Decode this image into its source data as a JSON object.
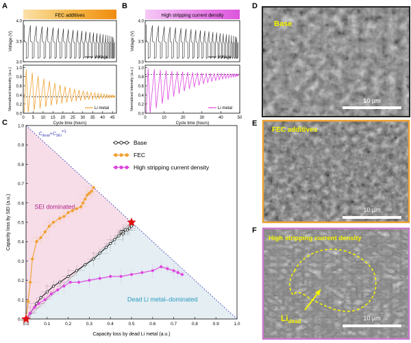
{
  "panel_letters": {
    "a": "A",
    "b": "B",
    "c": "C",
    "d": "D",
    "e": "E",
    "f": "F"
  },
  "colors": {
    "orange": "#f0a030",
    "magenta": "#dd44dd",
    "black": "#111111",
    "fec_banner": "#f5a623",
    "hscd_banner": "#e478e8",
    "sei_region": "#f6dde8",
    "deadli_region": "#e4eef3",
    "diag": "#3a3ab8",
    "star": "#e01010",
    "sem_base_border": "#222222",
    "sem_fec_border": "#f0a030",
    "sem_hscd_border": "#cc77cc"
  },
  "panelA": {
    "banner": "FEC additives",
    "voltage_ylabel": "Voltage (V)",
    "voltage_ticks": [
      "3.5",
      "4.0",
      "3.0"
    ],
    "intensity_ylabel": "Normalized intensity (a.u.)",
    "intensity_ticks": [
      "1.0",
      "0.8",
      "0.6",
      "0.4",
      "0.2",
      "0.0"
    ],
    "x_ticks": [
      "0",
      "5",
      "10",
      "15",
      "20",
      "25",
      "30",
      "35",
      "40",
      "45"
    ],
    "xlabel": "Cycle time (hours)",
    "legend_voltage": "Voltage",
    "legend_li": "Li metal",
    "dashed_level": 0.36
  },
  "panelB": {
    "banner": "High stripping current density",
    "voltage_ylabel": "Voltage (V)",
    "voltage_ticks": [
      "3.5",
      "4.0",
      "3.0"
    ],
    "intensity_ylabel": "Normalized intensity (a.u.)",
    "intensity_ticks": [
      "1.0",
      "0.8",
      "0.6",
      "0.4",
      "0.2",
      "0.0"
    ],
    "x_ticks": [
      "0",
      "10",
      "20",
      "30",
      "40",
      "50"
    ],
    "xlabel": "Cycle time (hours)",
    "legend_voltage": "Voltage",
    "legend_li": "Li metal",
    "dashed_level": 0.85
  },
  "chart_data": [
    {
      "type": "line",
      "title": "FEC additives",
      "xlabel": "Cycle time (hours)",
      "ylabel": "Normalized intensity (a.u.)",
      "xlim": [
        0,
        47
      ],
      "ylim": [
        0,
        1.05
      ],
      "cycles": 23,
      "cycle_period_h": 2.0,
      "peak_start": 0.96,
      "trough_start": 0.02,
      "converge_to": 0.36,
      "voltage_ylim": [
        3.0,
        4.0
      ],
      "voltage_high": 3.5,
      "voltage_low": 3.0
    },
    {
      "type": "line",
      "title": "High stripping current density",
      "xlabel": "Cycle time (hours)",
      "ylabel": "Normalized intensity (a.u.)",
      "xlim": [
        0,
        50
      ],
      "ylim": [
        0,
        1.05
      ],
      "cycles": 23,
      "cycle_period_h": 2.1,
      "peak_start": 0.98,
      "trough_start": 0.0,
      "converge_to": 0.85,
      "voltage_ylim": [
        3.0,
        4.0
      ],
      "voltage_high": 3.5,
      "voltage_low": 3.0
    },
    {
      "type": "line",
      "title": "",
      "xlabel": "Capacity loss by dead Li metal (a.u.)",
      "ylabel": "Capacity loss by SEI (a.u.)",
      "xlim": [
        0,
        1.0
      ],
      "ylim": [
        0,
        1.0
      ],
      "x_ticks": [
        "0.0",
        "0.1",
        "0.2",
        "0.3",
        "0.4",
        "0.5",
        "0.6",
        "0.7",
        "0.8",
        "0.9",
        "1.0"
      ],
      "y_ticks": [
        "0.0",
        "0.1",
        "0.2",
        "0.3",
        "0.4",
        "0.5",
        "0.6",
        "0.7",
        "0.8",
        "0.9",
        "1.0"
      ],
      "diagonal_label_c": "C",
      "diagonal_label_dead": "dead",
      "diagonal_label_plus": "+",
      "diagonal_label_sei": "SEI",
      "diagonal_label_eq": "=1",
      "region_sei": "SEI dominated",
      "region_dead": "Dead Li metal–dominated",
      "star_points": [
        [
          0.0,
          0.0
        ],
        [
          0.5,
          0.5
        ]
      ],
      "series": [
        {
          "name": "Base",
          "color": "#111111",
          "x": [
            0.0,
            0.02,
            0.05,
            0.07,
            0.1,
            0.13,
            0.16,
            0.2,
            0.24,
            0.28,
            0.32,
            0.35,
            0.38,
            0.4,
            0.42,
            0.44,
            0.46,
            0.48,
            0.5,
            0.49,
            0.47,
            0.45,
            0.46
          ],
          "y": [
            0.0,
            0.03,
            0.08,
            0.11,
            0.14,
            0.17,
            0.19,
            0.22,
            0.25,
            0.28,
            0.31,
            0.34,
            0.37,
            0.39,
            0.41,
            0.43,
            0.45,
            0.46,
            0.48,
            0.47,
            0.46,
            0.45,
            0.44
          ]
        },
        {
          "name": "FEC",
          "color": "#f0a030",
          "x": [
            0.0,
            0.01,
            0.02,
            0.03,
            0.05,
            0.07,
            0.09,
            0.11,
            0.13,
            0.16,
            0.18,
            0.2,
            0.22,
            0.24,
            0.26,
            0.27,
            0.28,
            0.29,
            0.3,
            0.31,
            0.32
          ],
          "y": [
            0.0,
            0.09,
            0.19,
            0.31,
            0.4,
            0.42,
            0.45,
            0.48,
            0.5,
            0.52,
            0.53,
            0.55,
            0.56,
            0.57,
            0.58,
            0.6,
            0.62,
            0.64,
            0.65,
            0.66,
            0.68
          ]
        },
        {
          "name": "High stripping current density",
          "color": "#dd44dd",
          "x": [
            0.0,
            0.02,
            0.04,
            0.06,
            0.09,
            0.12,
            0.15,
            0.18,
            0.21,
            0.25,
            0.3,
            0.35,
            0.4,
            0.45,
            0.5,
            0.55,
            0.6,
            0.64,
            0.67,
            0.7,
            0.72,
            0.74
          ],
          "y": [
            0.0,
            0.03,
            0.06,
            0.08,
            0.1,
            0.13,
            0.15,
            0.17,
            0.19,
            0.19,
            0.2,
            0.21,
            0.22,
            0.22,
            0.23,
            0.24,
            0.25,
            0.27,
            0.26,
            0.25,
            0.24,
            0.23
          ]
        }
      ]
    }
  ],
  "sem": {
    "base_label": "Base",
    "fec_label": "FEC additives",
    "hscd_label": "High stripping current density",
    "scale_bar": "10 µm",
    "li_dead_main": "Li",
    "li_dead_sub": "dead"
  }
}
